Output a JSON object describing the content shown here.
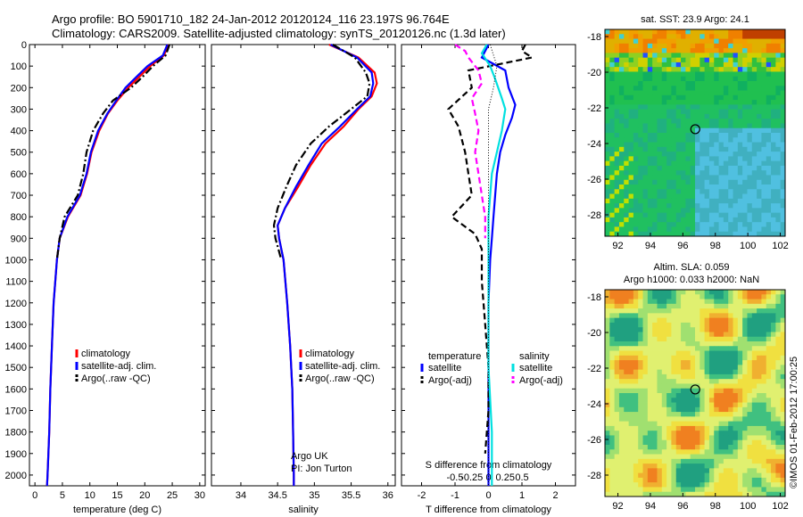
{
  "header": {
    "line1": "Argo profile: BO 5901710_182 24-Jan-2012 20120124_116 23.197S 96.764E",
    "line2": "Climatology: CARS2009. Satellite-adjusted climatology: synTS_20120126.nc (1.3d later)"
  },
  "colors": {
    "climatology": "#ff0000",
    "satellite": "#0000ff",
    "argo": "#000000",
    "sat_s": "#00e0e0",
    "argo_s": "#ff00ff"
  },
  "chart_data": [
    {
      "type": "line",
      "name": "temperature-profile",
      "xlabel": "temperature (deg C)",
      "ylim": [
        2050,
        0
      ],
      "xlim": [
        -1,
        31
      ],
      "xticks": [
        0,
        5,
        10,
        15,
        20,
        25,
        30
      ],
      "yticks": [
        0,
        100,
        200,
        300,
        400,
        500,
        600,
        700,
        800,
        900,
        1000,
        1100,
        1200,
        1300,
        1400,
        1500,
        1600,
        1700,
        1800,
        1900,
        2000
      ],
      "legend": [
        "climatology",
        "satellite-adj. clim.",
        "Argo(..raw -QC)"
      ],
      "series": [
        {
          "name": "climatology",
          "style": "solid",
          "points": [
            [
              24.3,
              0
            ],
            [
              23.5,
              50
            ],
            [
              21,
              100
            ],
            [
              19,
              150
            ],
            [
              17,
              200
            ],
            [
              15,
              260
            ],
            [
              13.3,
              320
            ],
            [
              11.7,
              400
            ],
            [
              10.3,
              500
            ],
            [
              9.5,
              600
            ],
            [
              8.3,
              700
            ],
            [
              6,
              800
            ],
            [
              4.5,
              900
            ],
            [
              4,
              1000
            ],
            [
              3.4,
              1200
            ],
            [
              3.1,
              1400
            ],
            [
              2.8,
              1600
            ],
            [
              2.6,
              1800
            ],
            [
              2.3,
              2000
            ],
            [
              2.2,
              2050
            ]
          ]
        },
        {
          "name": "satellite-adj. clim.",
          "style": "solid",
          "points": [
            [
              24.1,
              0
            ],
            [
              23.3,
              50
            ],
            [
              20.5,
              100
            ],
            [
              18.5,
              150
            ],
            [
              16.5,
              200
            ],
            [
              14.8,
              260
            ],
            [
              13.2,
              320
            ],
            [
              11.5,
              400
            ],
            [
              10.2,
              500
            ],
            [
              9.4,
              600
            ],
            [
              8.2,
              700
            ],
            [
              5.9,
              800
            ],
            [
              4.5,
              900
            ],
            [
              4,
              1000
            ],
            [
              3.4,
              1200
            ],
            [
              3.1,
              1400
            ],
            [
              2.8,
              1600
            ],
            [
              2.6,
              1800
            ],
            [
              2.3,
              2000
            ],
            [
              2.2,
              2050
            ]
          ]
        },
        {
          "name": "Argo(..raw -QC)",
          "style": "dash-dot",
          "points": [
            [
              24.5,
              0
            ],
            [
              23.8,
              50
            ],
            [
              21.5,
              100
            ],
            [
              19.6,
              150
            ],
            [
              17.5,
              200
            ],
            [
              14.2,
              260
            ],
            [
              12.4,
              320
            ],
            [
              10.6,
              400
            ],
            [
              9.4,
              500
            ],
            [
              8.8,
              600
            ],
            [
              7.8,
              700
            ],
            [
              5.4,
              800
            ],
            [
              4.5,
              900
            ],
            [
              4,
              1000
            ]
          ]
        }
      ]
    },
    {
      "type": "line",
      "name": "salinity-profile",
      "xlabel": "salinity",
      "ylim": [
        2050,
        0
      ],
      "xlim": [
        33.6,
        36.1
      ],
      "xticks": [
        34,
        34.5,
        35,
        35.5,
        36
      ],
      "legend": [
        "climatology",
        "satellite-adj. clim.",
        "Argo(..raw -QC)"
      ],
      "annotation": [
        "Argo UK",
        "PI: Jon Turton"
      ],
      "series": [
        {
          "name": "climatology",
          "style": "solid",
          "points": [
            [
              35.2,
              0
            ],
            [
              35.6,
              60
            ],
            [
              35.82,
              130
            ],
            [
              35.85,
              180
            ],
            [
              35.78,
              240
            ],
            [
              35.6,
              300
            ],
            [
              35.4,
              380
            ],
            [
              35.15,
              460
            ],
            [
              34.95,
              560
            ],
            [
              34.78,
              660
            ],
            [
              34.6,
              760
            ],
            [
              34.5,
              840
            ],
            [
              34.52,
              900
            ],
            [
              34.58,
              1000
            ],
            [
              34.63,
              1200
            ],
            [
              34.67,
              1400
            ],
            [
              34.7,
              1600
            ],
            [
              34.71,
              1800
            ],
            [
              34.72,
              2000
            ],
            [
              34.72,
              2050
            ]
          ]
        },
        {
          "name": "satellite-adj. clim.",
          "style": "solid",
          "points": [
            [
              35.22,
              0
            ],
            [
              35.58,
              60
            ],
            [
              35.78,
              130
            ],
            [
              35.8,
              180
            ],
            [
              35.76,
              240
            ],
            [
              35.58,
              300
            ],
            [
              35.35,
              380
            ],
            [
              35.1,
              460
            ],
            [
              34.92,
              560
            ],
            [
              34.75,
              660
            ],
            [
              34.6,
              760
            ],
            [
              34.5,
              840
            ],
            [
              34.52,
              900
            ],
            [
              34.58,
              1000
            ],
            [
              34.63,
              1200
            ],
            [
              34.67,
              1400
            ],
            [
              34.7,
              1600
            ],
            [
              34.71,
              1800
            ],
            [
              34.72,
              2000
            ],
            [
              34.72,
              2050
            ]
          ]
        },
        {
          "name": "Argo(..raw -QC)",
          "style": "dash-dot",
          "points": [
            [
              35.25,
              0
            ],
            [
              35.55,
              60
            ],
            [
              35.7,
              130
            ],
            [
              35.75,
              180
            ],
            [
              35.72,
              240
            ],
            [
              35.5,
              300
            ],
            [
              35.2,
              380
            ],
            [
              34.95,
              460
            ],
            [
              34.75,
              560
            ],
            [
              34.62,
              660
            ],
            [
              34.5,
              760
            ],
            [
              34.45,
              840
            ],
            [
              34.47,
              900
            ],
            [
              34.55,
              1000
            ]
          ]
        }
      ]
    },
    {
      "type": "line",
      "name": "difference-profile",
      "xlabel": "T difference from climatology",
      "x2label": "S difference from climatology",
      "ylim": [
        2050,
        0
      ],
      "xlim": [
        -2.6,
        2.6
      ],
      "xticks": [
        "-2",
        "-1",
        "0",
        "1",
        "2"
      ],
      "x2ticks": [
        "-0.5",
        "-0.25",
        "0",
        "0.25",
        "0.5"
      ],
      "legend": {
        "temperature": [
          "satellite",
          "Argo(-adj)"
        ],
        "salinity": [
          "satellite",
          "Argo(-adj)"
        ]
      },
      "legend_titles": [
        "temperature",
        "salinity"
      ],
      "series": [
        {
          "name": "temperature satellite",
          "style": "solid",
          "points": [
            [
              0,
              0
            ],
            [
              -0.1,
              30
            ],
            [
              -0.2,
              60
            ],
            [
              0.5,
              120
            ],
            [
              0.6,
              200
            ],
            [
              0.8,
              280
            ],
            [
              0.7,
              340
            ],
            [
              0.5,
              420
            ],
            [
              0.35,
              500
            ],
            [
              0.25,
              600
            ],
            [
              0.2,
              700
            ],
            [
              0.15,
              800
            ],
            [
              0.1,
              900
            ],
            [
              0.05,
              1000
            ],
            [
              0,
              1200
            ],
            [
              0,
              1600
            ],
            [
              0,
              2050
            ]
          ]
        },
        {
          "name": "temperature Argo(-adj)",
          "style": "dashed",
          "points": [
            [
              1.1,
              0
            ],
            [
              1.0,
              30
            ],
            [
              1.3,
              60
            ],
            [
              -0.6,
              120
            ],
            [
              -0.5,
              200
            ],
            [
              -1.2,
              300
            ],
            [
              -0.9,
              380
            ],
            [
              -0.7,
              500
            ],
            [
              -0.6,
              600
            ],
            [
              -0.5,
              700
            ],
            [
              -1.1,
              800
            ],
            [
              -0.4,
              880
            ],
            [
              -0.2,
              950
            ],
            [
              -0.2,
              1100
            ],
            [
              -0.1,
              1300
            ],
            [
              0,
              1500
            ],
            [
              0,
              1700
            ],
            [
              -0.1,
              1900
            ]
          ]
        },
        {
          "name": "salinity satellite",
          "style": "solid",
          "points": [
            [
              -0.05,
              0
            ],
            [
              -0.2,
              40
            ],
            [
              0.05,
              100
            ],
            [
              0.2,
              160
            ],
            [
              0.4,
              250
            ],
            [
              0.5,
              300
            ],
            [
              0.4,
              400
            ],
            [
              0.25,
              500
            ],
            [
              0.1,
              600
            ],
            [
              0.05,
              700
            ],
            [
              0,
              800
            ],
            [
              0,
              1000
            ],
            [
              0,
              1500
            ],
            [
              0.1,
              1800
            ],
            [
              0.1,
              2050
            ]
          ]
        },
        {
          "name": "salinity Argo(-adj)",
          "style": "dashed",
          "points": [
            [
              -1.0,
              0
            ],
            [
              -0.7,
              30
            ],
            [
              -0.6,
              60
            ],
            [
              -0.3,
              120
            ],
            [
              -0.2,
              180
            ],
            [
              -0.5,
              250
            ],
            [
              -0.4,
              320
            ],
            [
              -0.3,
              400
            ],
            [
              -0.4,
              500
            ],
            [
              -0.3,
              600
            ],
            [
              -0.2,
              700
            ],
            [
              -0.1,
              800
            ],
            [
              -0.1,
              900
            ]
          ]
        },
        {
          "name": "reference",
          "style": "dotted",
          "points": [
            [
              0.05,
              0
            ],
            [
              0.25,
              100
            ],
            [
              0.15,
              200
            ],
            [
              0,
              300
            ],
            [
              0,
              2050
            ]
          ]
        }
      ]
    },
    {
      "type": "heatmap",
      "name": "sst-map",
      "title": "sat. SST: 23.9 Argo: 24.1",
      "xticks": [
        92,
        94,
        96,
        98,
        100,
        102
      ],
      "yticks": [
        -18,
        -20,
        -22,
        -24,
        -26,
        -28
      ],
      "xlim": [
        91.2,
        102.3
      ],
      "ylim": [
        -29.2,
        -17.6
      ],
      "marker": [
        96.764,
        -23.197
      ]
    },
    {
      "type": "heatmap",
      "name": "sla-map",
      "title": [
        "Altim. SLA: 0.059",
        "Argo h1000: 0.033 h2000: NaN"
      ],
      "xticks": [
        92,
        94,
        96,
        98,
        100,
        102
      ],
      "yticks": [
        -18,
        -20,
        -22,
        -24,
        -26,
        -28
      ],
      "xlim": [
        91.2,
        102.3
      ],
      "ylim": [
        -29.2,
        -17.6
      ],
      "marker": [
        96.764,
        -23.197
      ]
    }
  ],
  "footer": {
    "credit": "©IMOS 01-Feb-2012 17:00:25"
  }
}
